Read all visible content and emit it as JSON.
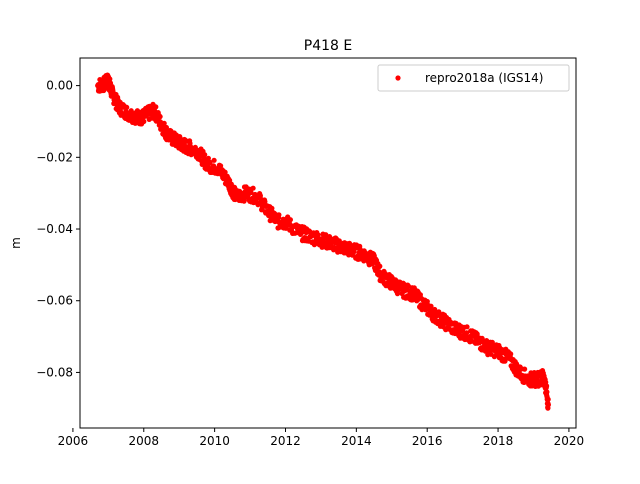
{
  "chart_data": {
    "type": "scatter",
    "title": "P418 E",
    "xlabel": "",
    "ylabel": "m",
    "xlim": [
      2006.2,
      2020.2
    ],
    "ylim": [
      -0.0955,
      0.0077
    ],
    "x_ticks": [
      2006,
      2008,
      2010,
      2012,
      2014,
      2016,
      2018,
      2020
    ],
    "x_tick_labels": [
      "2006",
      "2008",
      "2010",
      "2012",
      "2014",
      "2016",
      "2018",
      "2020"
    ],
    "y_ticks": [
      0.0,
      -0.02,
      -0.04,
      -0.06,
      -0.08
    ],
    "y_tick_labels": [
      "0.00",
      "−0.02",
      "−0.04",
      "−0.06",
      "−0.08"
    ],
    "grid": false,
    "legend_position": "top-right",
    "series": [
      {
        "name": "repro2018a (IGS14)",
        "color": "#ff0000",
        "marker": "point",
        "x": [
          2006.7,
          2006.9,
          2007.0,
          2007.1,
          2007.3,
          2007.6,
          2007.9,
          2008.1,
          2008.3,
          2008.5,
          2008.7,
          2009.0,
          2009.2,
          2009.5,
          2009.8,
          2010.1,
          2010.4,
          2010.6,
          2010.9,
          2011.2,
          2011.5,
          2011.8,
          2012.0,
          2012.4,
          2012.7,
          2013.0,
          2013.3,
          2013.6,
          2013.9,
          2014.2,
          2014.5,
          2014.7,
          2015.0,
          2015.3,
          2015.6,
          2015.9,
          2016.2,
          2016.5,
          2016.8,
          2017.1,
          2017.4,
          2017.7,
          2018.0,
          2018.3,
          2018.6,
          2018.9,
          2019.1,
          2019.3,
          2019.42
        ],
        "y": [
          0.0,
          0.0005,
          0.0015,
          -0.002,
          -0.006,
          -0.008,
          -0.009,
          -0.008,
          -0.007,
          -0.011,
          -0.014,
          -0.016,
          -0.017,
          -0.018,
          -0.022,
          -0.023,
          -0.027,
          -0.031,
          -0.03,
          -0.031,
          -0.035,
          -0.038,
          -0.038,
          -0.041,
          -0.042,
          -0.043,
          -0.044,
          -0.045,
          -0.046,
          -0.047,
          -0.049,
          -0.053,
          -0.055,
          -0.057,
          -0.058,
          -0.061,
          -0.064,
          -0.066,
          -0.068,
          -0.069,
          -0.071,
          -0.073,
          -0.074,
          -0.076,
          -0.08,
          -0.082,
          -0.082,
          -0.081,
          -0.089
        ]
      }
    ]
  }
}
